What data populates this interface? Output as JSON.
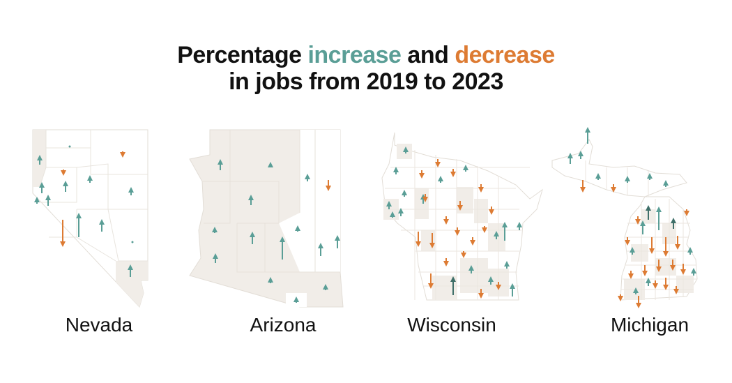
{
  "title": {
    "line1_pre": "Percentage ",
    "increase": "increase",
    "and": " and ",
    "decrease": "decrease",
    "line2": "in jobs from 2019 to 2023"
  },
  "colors": {
    "increase": "#5a9e96",
    "decrease": "#dd7b33",
    "increase_strong": "#3f6f69",
    "land": "#ffffff",
    "land_shaded": "#f1ede8",
    "border": "#e2ddd6"
  },
  "states": [
    {
      "name": "Nevada"
    },
    {
      "name": "Arizona"
    },
    {
      "name": "Wisconsin"
    },
    {
      "name": "Michigan"
    }
  ]
}
